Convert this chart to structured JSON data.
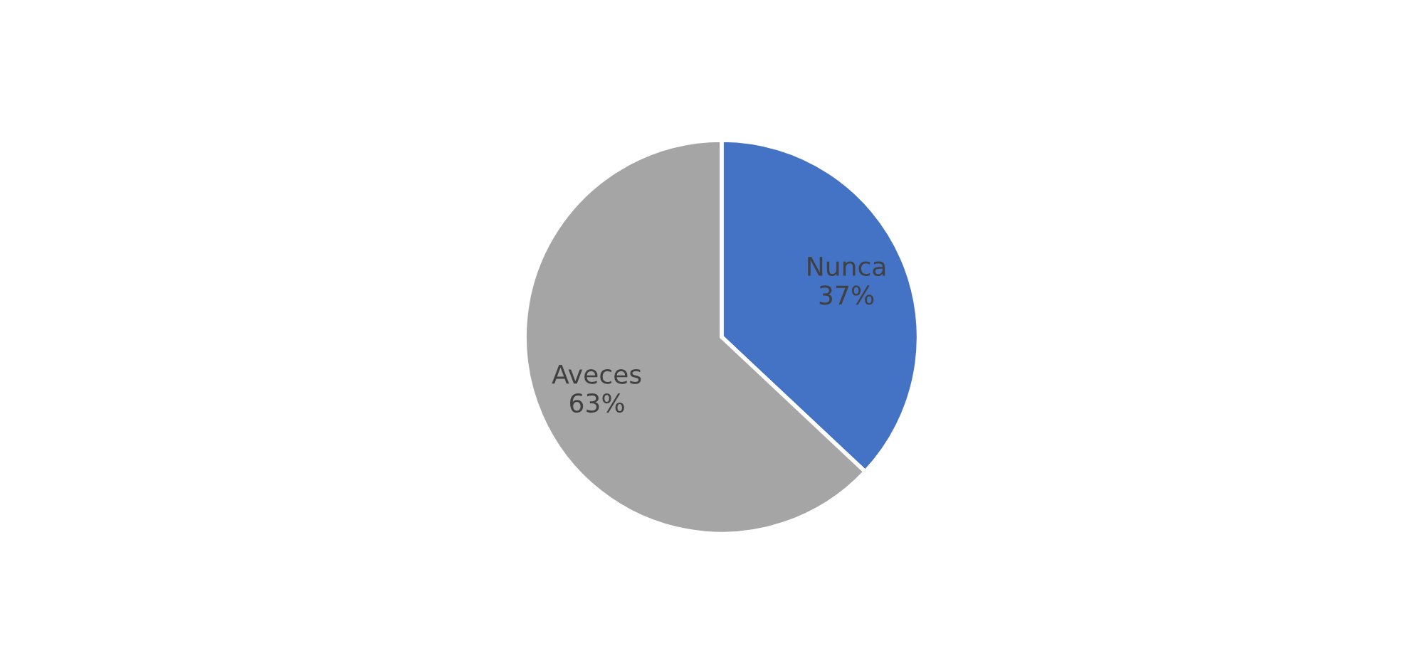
{
  "chart_data": {
    "type": "pie",
    "categories": [
      "Nunca",
      "Aveces"
    ],
    "values": [
      37,
      63
    ],
    "colors": [
      "#4472c4",
      "#a5a5a5"
    ],
    "value_labels": [
      "37%",
      "63%"
    ],
    "legend": false
  }
}
